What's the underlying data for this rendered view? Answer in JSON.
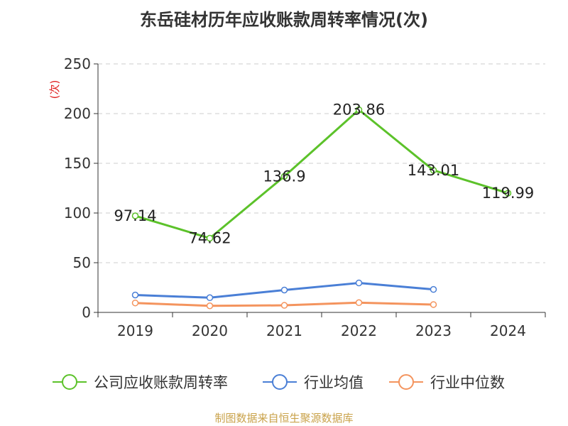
{
  "chart_data": {
    "type": "line",
    "title": "东岳硅材历年应收账款周转率情况(次)",
    "ylabel": "(次)",
    "xlabel": "",
    "categories": [
      "2019",
      "2020",
      "2021",
      "2022",
      "2023",
      "2024"
    ],
    "ylim": [
      0,
      250
    ],
    "yticks": [
      0,
      50,
      100,
      150,
      200,
      250
    ],
    "grid": true,
    "legend_position": "bottom",
    "series": [
      {
        "name": "公司应收账款周转率",
        "color": "#5cc22a",
        "values": [
          97.14,
          74.62,
          136.9,
          203.86,
          143.01,
          119.99
        ],
        "labels": [
          "97.14",
          "74.62",
          "136.9",
          "203.86",
          "143.01",
          "119.99"
        ]
      },
      {
        "name": "行业均值",
        "color": "#4a7fd6",
        "values": [
          17.5,
          14.8,
          22.5,
          29.6,
          23.1,
          null
        ]
      },
      {
        "name": "行业中位数",
        "color": "#f4945e",
        "values": [
          9.5,
          6.6,
          7.1,
          9.8,
          7.9,
          null
        ]
      }
    ]
  },
  "source": "制图数据来自恒生聚源数据库"
}
